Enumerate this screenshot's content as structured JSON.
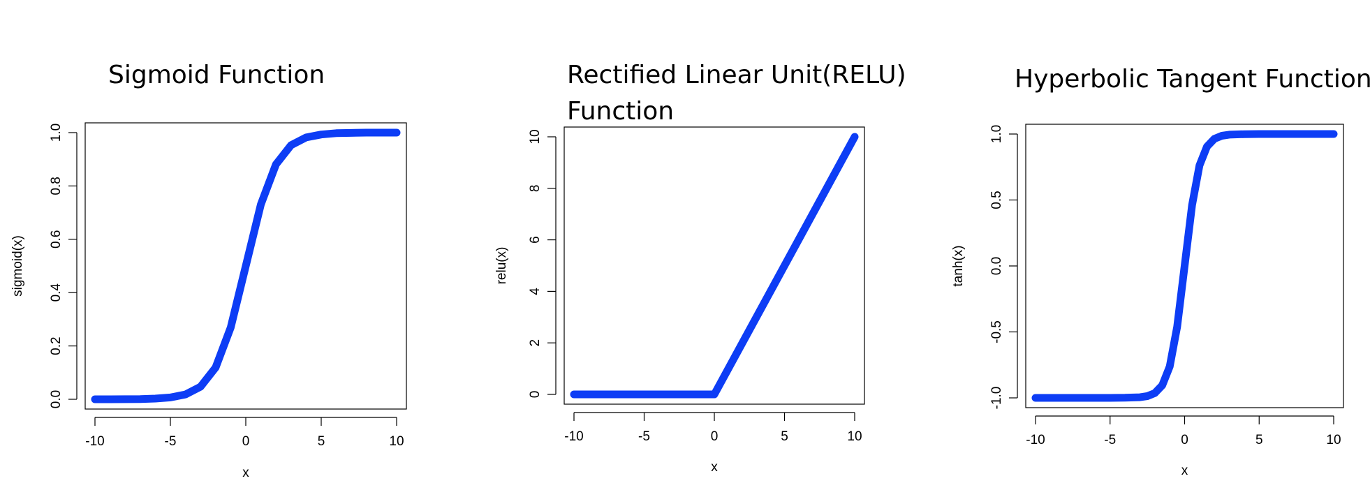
{
  "chart_data": [
    {
      "type": "line",
      "title": "Sigmoid Function",
      "xlabel": "x",
      "ylabel": "sigmoid(x)",
      "xlim": [
        -10,
        10
      ],
      "ylim": [
        0,
        1
      ],
      "xticks": [
        -10,
        -5,
        0,
        5,
        10
      ],
      "yticks": [
        0.0,
        0.2,
        0.4,
        0.6,
        0.8,
        1.0
      ],
      "ytick_labels": [
        "0.0",
        "0.2",
        "0.4",
        "0.6",
        "0.8",
        "1.0"
      ],
      "grid": false,
      "series": [
        {
          "color": "#0d3df5",
          "x": [
            -10,
            -9,
            -8,
            -7,
            -6,
            -5,
            -4,
            -3,
            -2,
            -1,
            0,
            1,
            2,
            3,
            4,
            5,
            6,
            7,
            8,
            9,
            10
          ],
          "y": [
            0.0,
            0.0001,
            0.0003,
            0.0009,
            0.0025,
            0.0067,
            0.018,
            0.047,
            0.119,
            0.269,
            0.5,
            0.731,
            0.881,
            0.953,
            0.982,
            0.993,
            0.998,
            0.999,
            1.0,
            1.0,
            1.0
          ]
        }
      ]
    },
    {
      "type": "line",
      "title": "Rectified Linear Unit(RELU) Function",
      "title_lines": [
        "Rectified Linear Unit(RELU)",
        "Function"
      ],
      "xlabel": "x",
      "ylabel": "relu(x)",
      "xlim": [
        -10,
        10
      ],
      "ylim": [
        0,
        10
      ],
      "xticks": [
        -10,
        -5,
        0,
        5,
        10
      ],
      "yticks": [
        0,
        2,
        4,
        6,
        8,
        10
      ],
      "ytick_labels": [
        "0",
        "2",
        "4",
        "6",
        "8",
        "10"
      ],
      "grid": false,
      "series": [
        {
          "color": "#0d3df5",
          "x": [
            -10,
            -5,
            0,
            5,
            10
          ],
          "y": [
            0,
            0,
            0,
            5,
            10
          ]
        }
      ]
    },
    {
      "type": "line",
      "title": "Hyperbolic Tangent Function",
      "xlabel": "x",
      "ylabel": "tanh(x)",
      "xlim": [
        -10,
        10
      ],
      "ylim": [
        -1,
        1
      ],
      "xticks": [
        -10,
        -5,
        0,
        5,
        10
      ],
      "yticks": [
        -1.0,
        -0.5,
        0.0,
        0.5,
        1.0
      ],
      "ytick_labels": [
        "-1.0",
        "-0.5",
        "0.0",
        "0.5",
        "1.0"
      ],
      "grid": false,
      "series": [
        {
          "color": "#0d3df5",
          "x": [
            -10,
            -5,
            -4,
            -3,
            -2.5,
            -2,
            -1.5,
            -1,
            -0.5,
            0,
            0.5,
            1,
            1.5,
            2,
            2.5,
            3,
            4,
            5,
            10
          ],
          "y": [
            -1.0,
            -1.0,
            -0.999,
            -0.995,
            -0.987,
            -0.964,
            -0.905,
            -0.762,
            -0.462,
            0.0,
            0.462,
            0.762,
            0.905,
            0.964,
            0.987,
            0.995,
            0.999,
            1.0,
            1.0
          ]
        }
      ]
    }
  ]
}
